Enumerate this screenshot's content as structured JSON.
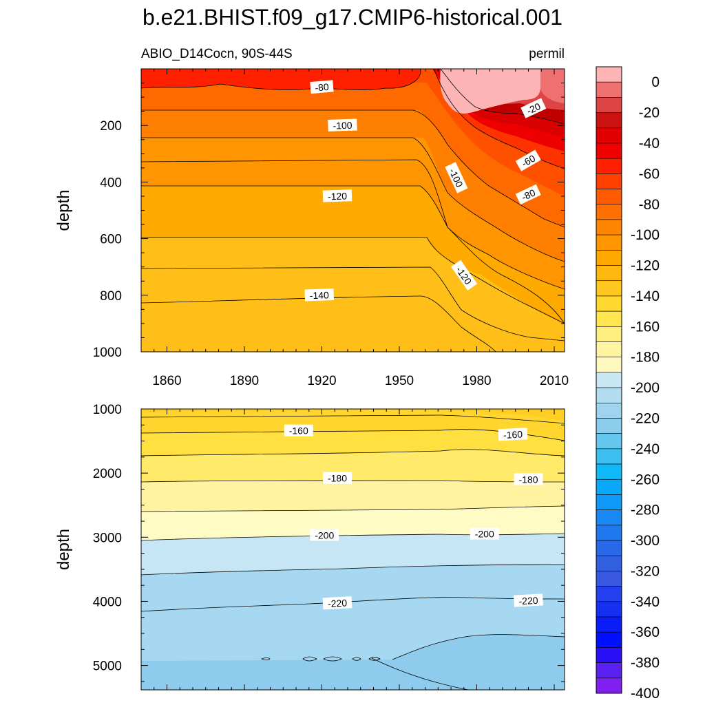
{
  "title": "b.e21.BHIST.f09_g17.CMIP6-historical.001",
  "subtitle_left": "ABIO_D14Cocn, 90S-44S",
  "subtitle_right": "permil",
  "chart_data": [
    {
      "type": "contour",
      "panel": "top",
      "xlabel": "",
      "ylabel": "depth",
      "xlim": [
        1850,
        2014
      ],
      "ylim": [
        1000,
        0
      ],
      "x_ticks": [
        1860,
        1890,
        1920,
        1950,
        1980,
        2010
      ],
      "y_ticks": [
        200,
        400,
        600,
        800,
        1000
      ],
      "contour_labels": [
        {
          "text": "-80",
          "x": 1920,
          "y": 65,
          "angle": -5
        },
        {
          "text": "-100",
          "x": 1928,
          "y": 200,
          "angle": -2
        },
        {
          "text": "-120",
          "x": 1926,
          "y": 450,
          "angle": -2
        },
        {
          "text": "-140",
          "x": 1919,
          "y": 800,
          "angle": -2
        },
        {
          "text": "-100",
          "x": 1972,
          "y": 385,
          "angle": 65
        },
        {
          "text": "-120",
          "x": 1975,
          "y": 730,
          "angle": 55
        },
        {
          "text": "-20",
          "x": 2002,
          "y": 140,
          "angle": -25
        },
        {
          "text": "-60",
          "x": 2000,
          "y": 325,
          "angle": -30
        },
        {
          "text": "-80",
          "x": 2000,
          "y": 445,
          "angle": -25
        }
      ]
    },
    {
      "type": "contour",
      "panel": "bottom",
      "xlabel": "",
      "ylabel": "depth",
      "xlim": [
        1850,
        2014
      ],
      "ylim": [
        5380,
        1000
      ],
      "x_ticks": [
        1860,
        1890,
        1920,
        1950,
        1980,
        2010
      ],
      "y_ticks": [
        1000,
        2000,
        3000,
        4000,
        5000
      ],
      "contour_labels": [
        {
          "text": "-160",
          "x": 1911,
          "y": 1340,
          "angle": 0
        },
        {
          "text": "-160",
          "x": 1994,
          "y": 1400,
          "angle": -3
        },
        {
          "text": "-180",
          "x": 1926,
          "y": 2080,
          "angle": 0
        },
        {
          "text": "-180",
          "x": 2000,
          "y": 2100,
          "angle": 0
        },
        {
          "text": "-200",
          "x": 1921,
          "y": 2970,
          "angle": 0
        },
        {
          "text": "-200",
          "x": 1983,
          "y": 2950,
          "angle": 0
        },
        {
          "text": "-220",
          "x": 1926,
          "y": 4030,
          "angle": -3
        },
        {
          "text": "-220",
          "x": 2000,
          "y": 3990,
          "angle": -3
        }
      ]
    }
  ],
  "colorbar": {
    "labels": [
      "0",
      "-20",
      "-40",
      "-60",
      "-80",
      "-100",
      "-120",
      "-140",
      "-160",
      "-180",
      "-200",
      "-220",
      "-240",
      "-260",
      "-280",
      "-300",
      "-320",
      "-340",
      "-360",
      "-380",
      "-400"
    ],
    "colors": [
      "#fdb4b4",
      "#ee7070",
      "#dd4444",
      "#cc1111",
      "#e00000",
      "#f00000",
      "#ff2000",
      "#ff4000",
      "#ff5a00",
      "#ff7000",
      "#ff8400",
      "#ff9600",
      "#ffa800",
      "#ffb810",
      "#ffc820",
      "#ffd830",
      "#ffe550",
      "#ffef80",
      "#fff4a0",
      "#fff9c0",
      "#c9e6f5",
      "#b3dcf1",
      "#a0d4ee",
      "#8ccdee",
      "#65c6ee",
      "#3cbff0",
      "#10baf8",
      "#0aa8f8",
      "#1098f8",
      "#1888f5",
      "#2078f0",
      "#2a68ea",
      "#3060e0",
      "#3858e0",
      "#2240ee",
      "#1630f2",
      "#0a1cf8",
      "#0010ff",
      "#2a10f5",
      "#5a20f0",
      "#8020f0"
    ]
  }
}
